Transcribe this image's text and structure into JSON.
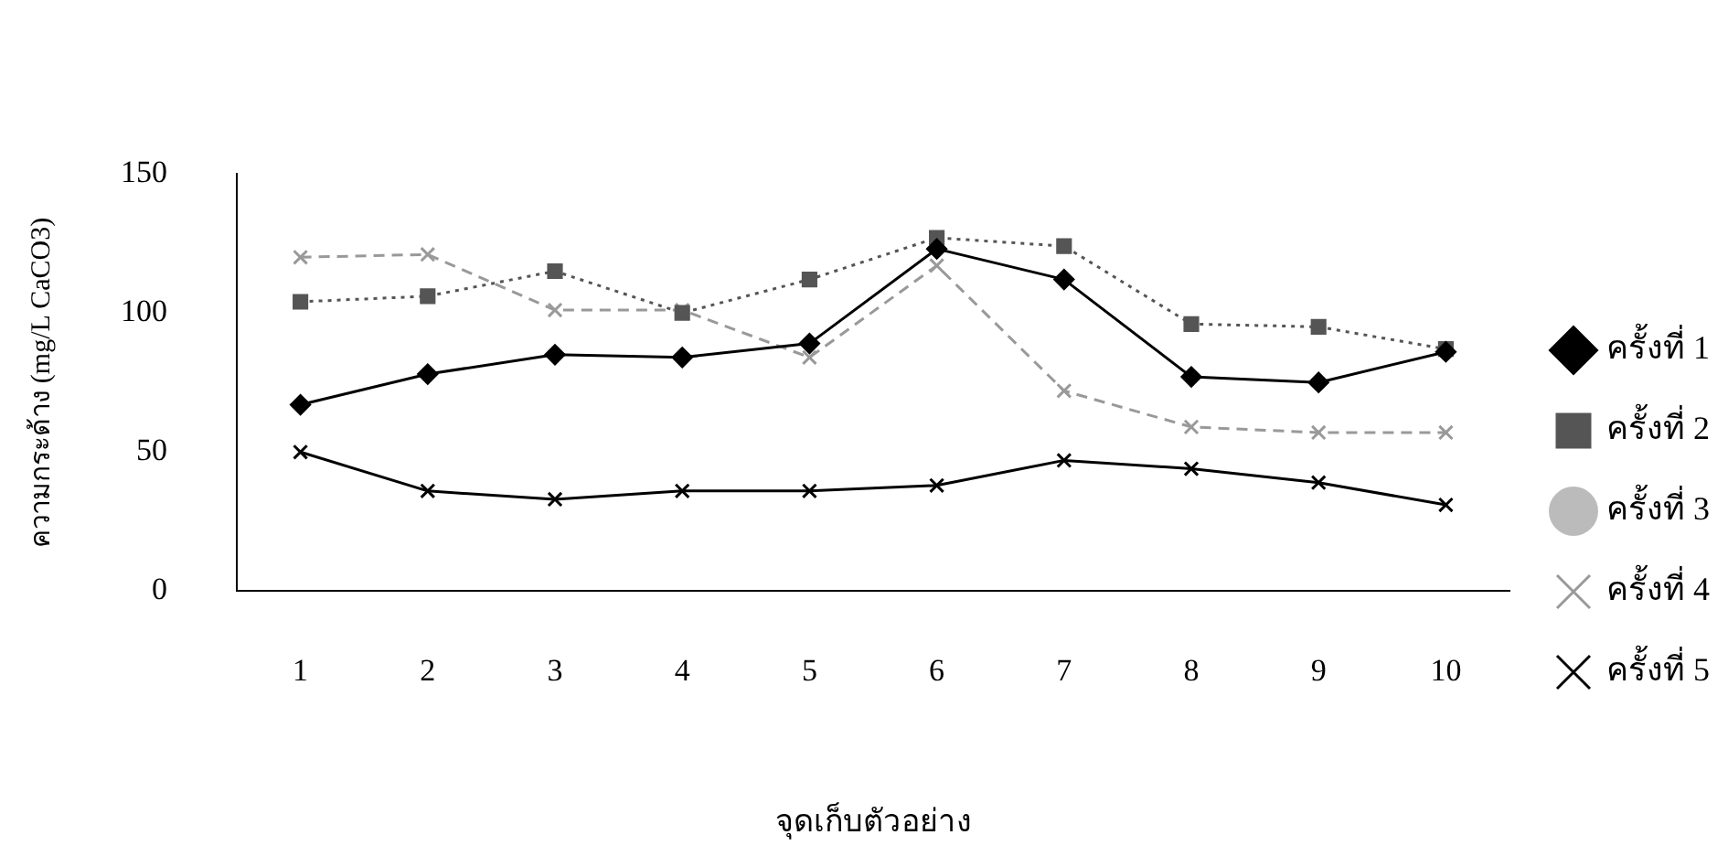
{
  "chart_data": {
    "type": "line",
    "ylabel": "ความกระด้าง (mg/L CaCO3)",
    "xlabel": "จุดเก็บตัวอย่าง",
    "categories": [
      "1",
      "2",
      "3",
      "4",
      "5",
      "6",
      "7",
      "8",
      "9",
      "10"
    ],
    "ylim": [
      0,
      150
    ],
    "yticks": [
      0,
      50,
      100,
      150
    ],
    "grid": false,
    "legend": "right",
    "series": [
      {
        "name": "ครั้งที่ 1",
        "color": "#000000",
        "marker": "diamond",
        "line_style": "solid",
        "values": [
          67,
          78,
          85,
          84,
          89,
          123,
          112,
          77,
          75,
          86
        ]
      },
      {
        "name": "ครั้งที่ 2",
        "color": "#555555",
        "marker": "square",
        "line_style": "dotted",
        "values": [
          104,
          106,
          115,
          100,
          112,
          127,
          124,
          96,
          95,
          87
        ]
      },
      {
        "name": "ครั้งที่ 3",
        "color": "#bbbbbb",
        "marker": "circle",
        "line_style": "solid",
        "values": [
          null,
          null,
          null,
          null,
          null,
          null,
          null,
          null,
          null,
          null
        ]
      },
      {
        "name": "ครั้งที่ 4",
        "color": "#999999",
        "marker": "cross",
        "line_style": "dashed",
        "values": [
          120,
          121,
          101,
          101,
          84,
          117,
          72,
          59,
          57,
          57
        ]
      },
      {
        "name": "ครั้งที่ 5",
        "color": "#000000",
        "marker": "cross",
        "line_style": "solid",
        "values": [
          50,
          36,
          33,
          36,
          36,
          38,
          47,
          44,
          39,
          31
        ]
      }
    ]
  }
}
